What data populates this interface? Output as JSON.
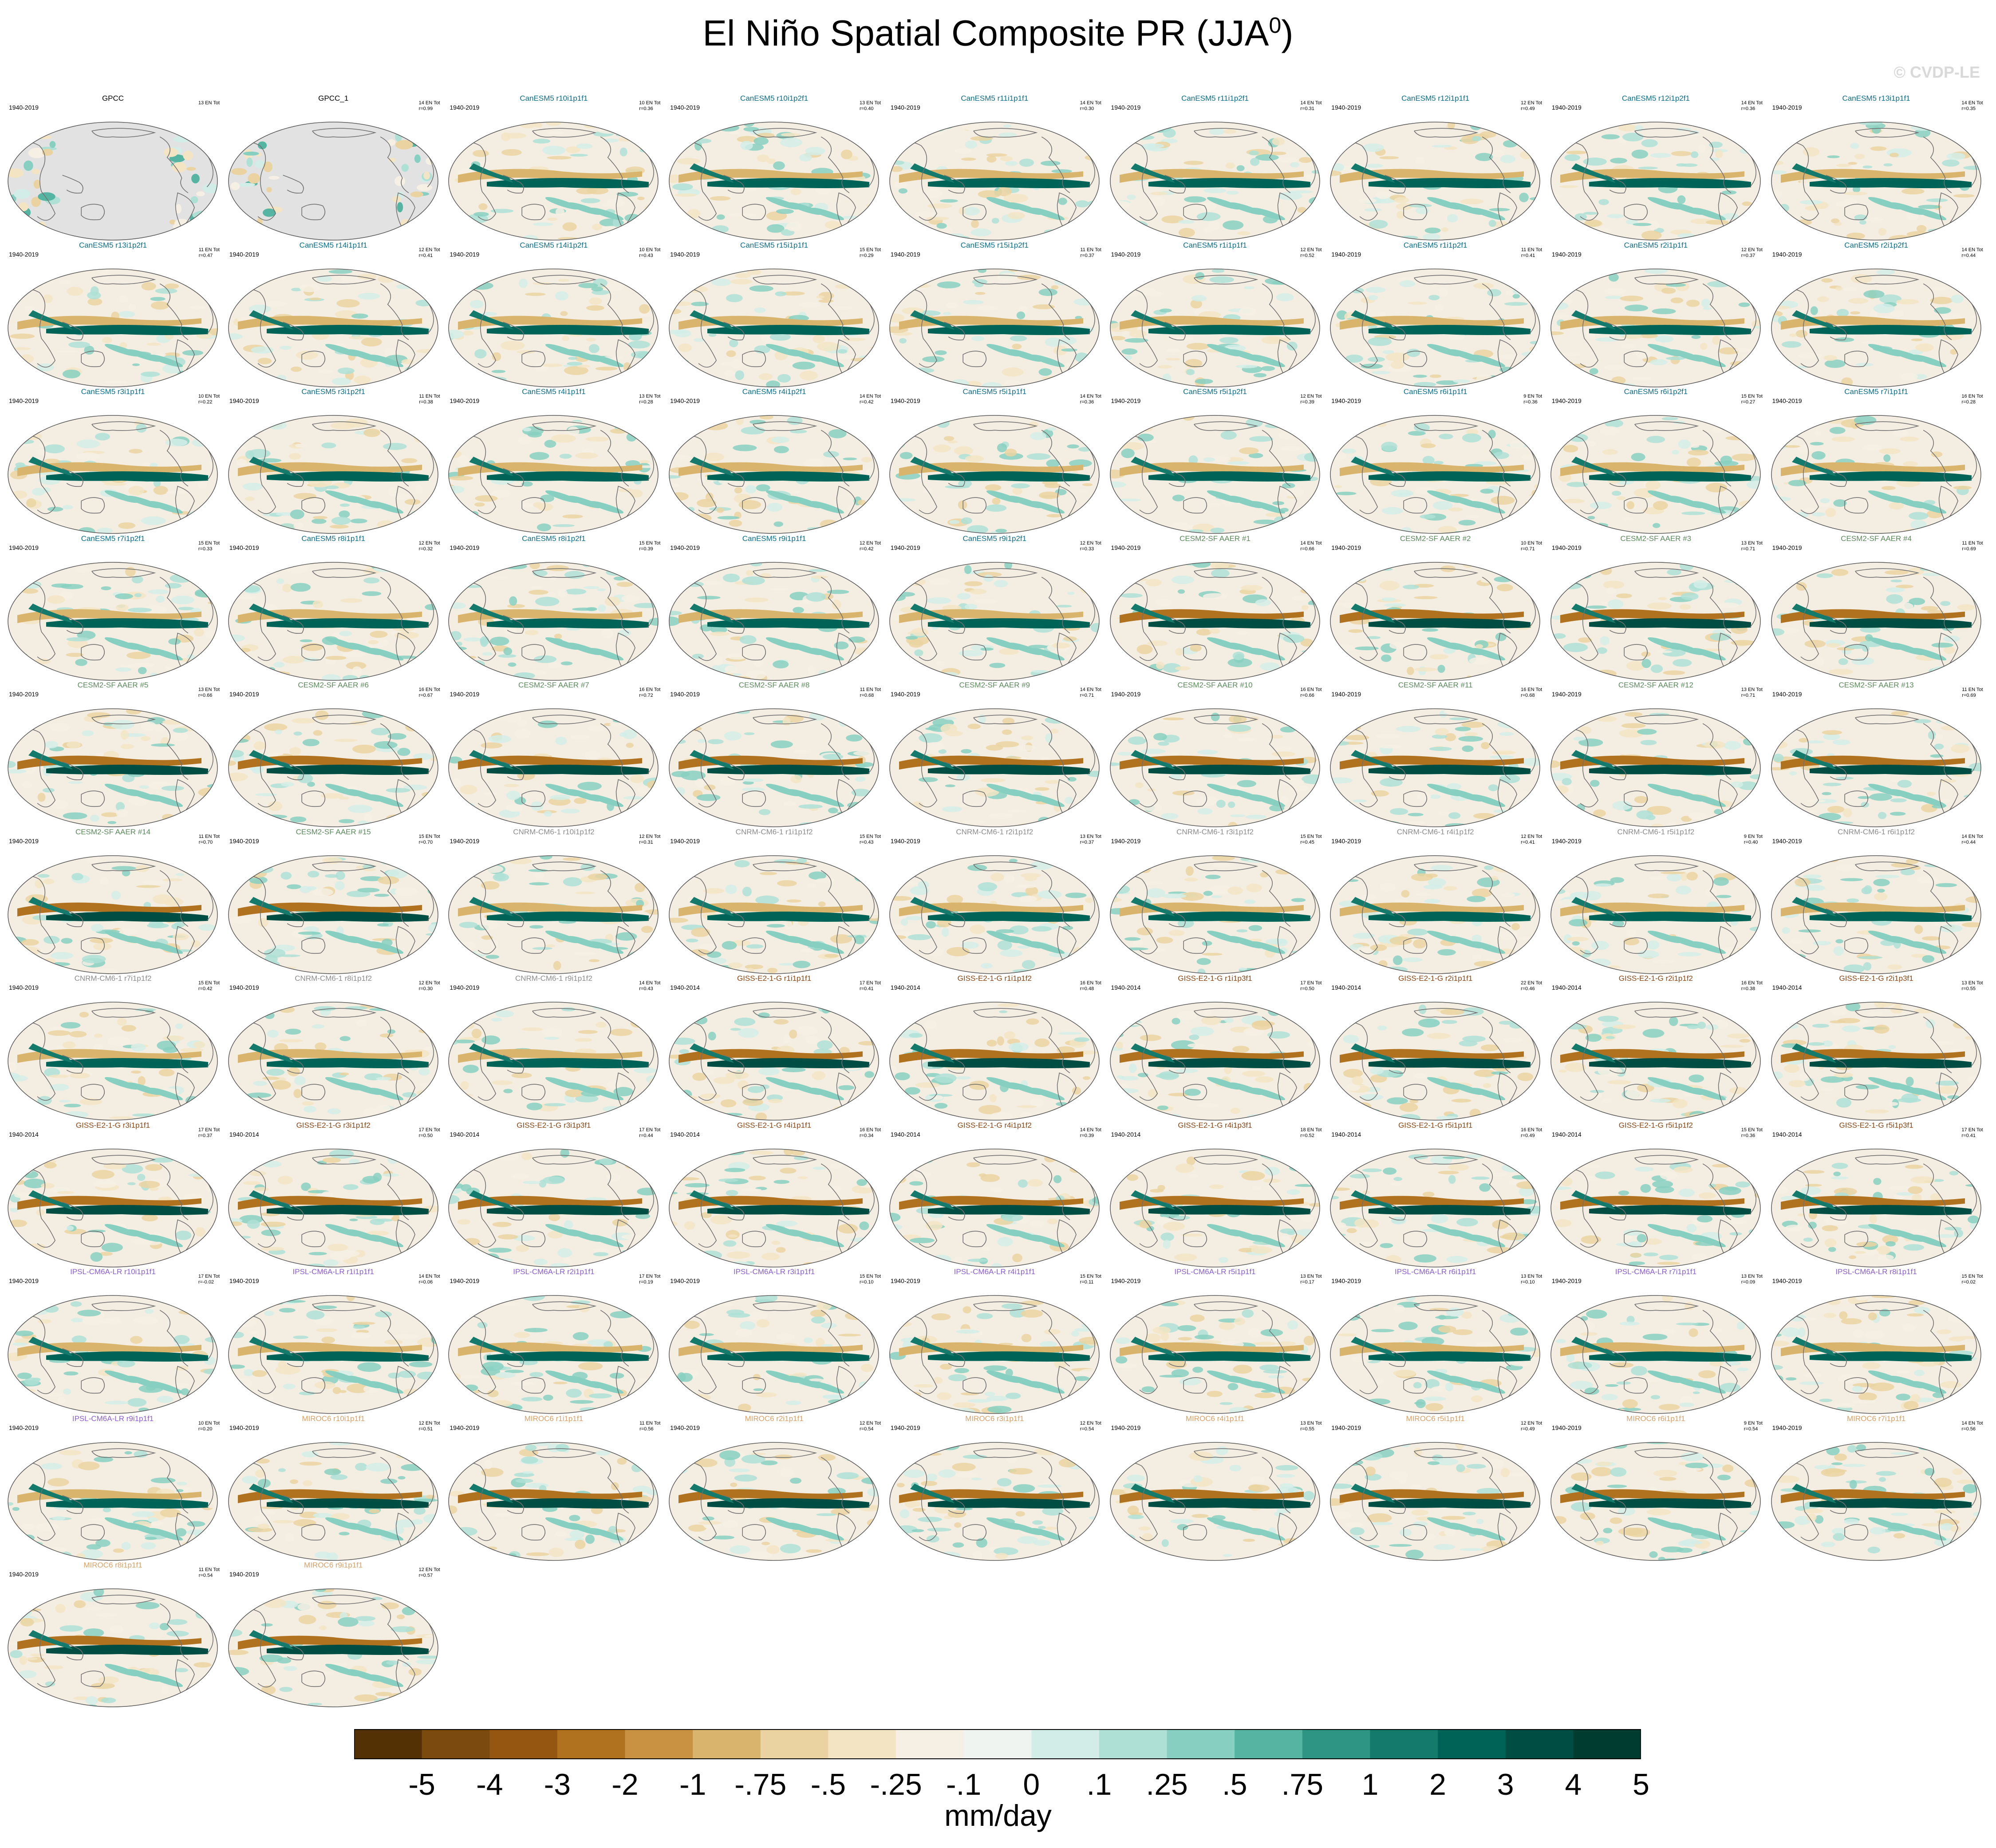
{
  "title": {
    "main": "El Niño Spatial Composite PR (JJA",
    "sup": "0",
    "close": ")"
  },
  "watermark": "© CVDP-LE",
  "units": "mm/day",
  "colors": {
    "gpcc_title": "#000000",
    "CanESM5": "#0a6e8a",
    "CESM2-SF AAER": "#5a8a5a",
    "CNRM-CM6-1": "#8c8c8c",
    "GISS-E2-1-G": "#8b4513",
    "IPSL-CM6A-LR": "#8a5cd6",
    "MIROC6": "#d9a066",
    "land_mask": "#e2e2e2",
    "coast": "#707070"
  },
  "chart_data": {
    "type": "heatmap",
    "title": "El Niño Spatial Composite PR (JJA0)",
    "colorbar": {
      "label": "mm/day",
      "tick_labels": [
        "-5",
        "-4",
        "-3",
        "-2",
        "-1",
        "-.75",
        "-.5",
        "-.25",
        "-.1",
        "0",
        ".1",
        ".25",
        ".5",
        ".75",
        "1",
        "2",
        "3",
        "4",
        "5"
      ],
      "colors": [
        "#543005",
        "#7a4a0e",
        "#955611",
        "#b0721f",
        "#c99242",
        "#d9b46c",
        "#ead3a0",
        "#f3e5c4",
        "#f6f0e4",
        "#f0f4f1",
        "#d2ede7",
        "#aee0d6",
        "#87d0c1",
        "#55b5a2",
        "#2e9585",
        "#137a6c",
        "#006358",
        "#004d43",
        "#003c30"
      ]
    },
    "panels": [
      {
        "name": "GPCC",
        "group": "obs",
        "years": "1940-2019",
        "count": "13 EN Tot",
        "r": "",
        "masked": true
      },
      {
        "name": "GPCC_1",
        "group": "obs",
        "years": "",
        "count": "14 EN Tot",
        "r": "r=0.99",
        "masked": true
      },
      {
        "name": "CanESM5 r10i1p1f1",
        "group": "CanESM5",
        "years": "1940-2019",
        "count": "10 EN Tot",
        "r": "r=0.36"
      },
      {
        "name": "CanESM5 r10i1p2f1",
        "group": "CanESM5",
        "years": "1940-2019",
        "count": "13 EN Tot",
        "r": "r=0.40"
      },
      {
        "name": "CanESM5 r11i1p1f1",
        "group": "CanESM5",
        "years": "1940-2019",
        "count": "14 EN Tot",
        "r": "r=0.30"
      },
      {
        "name": "CanESM5 r11i1p2f1",
        "group": "CanESM5",
        "years": "1940-2019",
        "count": "14 EN Tot",
        "r": "r=0.31"
      },
      {
        "name": "CanESM5 r12i1p1f1",
        "group": "CanESM5",
        "years": "1940-2019",
        "count": "12 EN Tot",
        "r": "r=0.49"
      },
      {
        "name": "CanESM5 r12i1p2f1",
        "group": "CanESM5",
        "years": "1940-2019",
        "count": "14 EN Tot",
        "r": "r=0.36"
      },
      {
        "name": "CanESM5 r13i1p1f1",
        "group": "CanESM5",
        "years": "1940-2019",
        "count": "14 EN Tot",
        "r": "r=0.35"
      },
      {
        "name": "CanESM5 r13i1p2f1",
        "group": "CanESM5",
        "years": "1940-2019",
        "count": "11 EN Tot",
        "r": "r=0.47"
      },
      {
        "name": "CanESM5 r14i1p1f1",
        "group": "CanESM5",
        "years": "1940-2019",
        "count": "12 EN Tot",
        "r": "r=0.41"
      },
      {
        "name": "CanESM5 r14i1p2f1",
        "group": "CanESM5",
        "years": "1940-2019",
        "count": "10 EN Tot",
        "r": "r=0.43"
      },
      {
        "name": "CanESM5 r15i1p1f1",
        "group": "CanESM5",
        "years": "1940-2019",
        "count": "15 EN Tot",
        "r": "r=0.29"
      },
      {
        "name": "CanESM5 r15i1p2f1",
        "group": "CanESM5",
        "years": "1940-2019",
        "count": "11 EN Tot",
        "r": "r=0.37"
      },
      {
        "name": "CanESM5 r1i1p1f1",
        "group": "CanESM5",
        "years": "1940-2019",
        "count": "12 EN Tot",
        "r": "r=0.52"
      },
      {
        "name": "CanESM5 r1i1p2f1",
        "group": "CanESM5",
        "years": "1940-2019",
        "count": "11 EN Tot",
        "r": "r=0.41"
      },
      {
        "name": "CanESM5 r2i1p1f1",
        "group": "CanESM5",
        "years": "1940-2019",
        "count": "12 EN Tot",
        "r": "r=0.37"
      },
      {
        "name": "CanESM5 r2i1p2f1",
        "group": "CanESM5",
        "years": "1940-2019",
        "count": "14 EN Tot",
        "r": "r=0.44"
      },
      {
        "name": "CanESM5 r3i1p1f1",
        "group": "CanESM5",
        "years": "1940-2019",
        "count": "10 EN Tot",
        "r": "r=0.22"
      },
      {
        "name": "CanESM5 r3i1p2f1",
        "group": "CanESM5",
        "years": "1940-2019",
        "count": "11 EN Tot",
        "r": "r=0.38"
      },
      {
        "name": "CanESM5 r4i1p1f1",
        "group": "CanESM5",
        "years": "1940-2019",
        "count": "13 EN Tot",
        "r": "r=0.28"
      },
      {
        "name": "CanESM5 r4i1p2f1",
        "group": "CanESM5",
        "years": "1940-2019",
        "count": "14 EN Tot",
        "r": "r=0.42"
      },
      {
        "name": "CanESM5 r5i1p1f1",
        "group": "CanESM5",
        "years": "1940-2019",
        "count": "14 EN Tot",
        "r": "r=0.36"
      },
      {
        "name": "CanESM5 r5i1p2f1",
        "group": "CanESM5",
        "years": "1940-2019",
        "count": "12 EN Tot",
        "r": "r=0.39"
      },
      {
        "name": "CanESM5 r6i1p1f1",
        "group": "CanESM5",
        "years": "1940-2019",
        "count": "9 EN Tot",
        "r": "r=0.36"
      },
      {
        "name": "CanESM5 r6i1p2f1",
        "group": "CanESM5",
        "years": "1940-2019",
        "count": "15 EN Tot",
        "r": "r=0.27"
      },
      {
        "name": "CanESM5 r7i1p1f1",
        "group": "CanESM5",
        "years": "1940-2019",
        "count": "16 EN Tot",
        "r": "r=0.28"
      },
      {
        "name": "CanESM5 r7i1p2f1",
        "group": "CanESM5",
        "years": "1940-2019",
        "count": "15 EN Tot",
        "r": "r=0.33"
      },
      {
        "name": "CanESM5 r8i1p1f1",
        "group": "CanESM5",
        "years": "1940-2019",
        "count": "12 EN Tot",
        "r": "r=0.32"
      },
      {
        "name": "CanESM5 r8i1p2f1",
        "group": "CanESM5",
        "years": "1940-2019",
        "count": "15 EN Tot",
        "r": "r=0.39"
      },
      {
        "name": "CanESM5 r9i1p1f1",
        "group": "CanESM5",
        "years": "1940-2019",
        "count": "12 EN Tot",
        "r": "r=0.42"
      },
      {
        "name": "CanESM5 r9i1p2f1",
        "group": "CanESM5",
        "years": "1940-2019",
        "count": "12 EN Tot",
        "r": "r=0.33"
      },
      {
        "name": "CESM2-SF AAER #1",
        "group": "CESM2-SF AAER",
        "years": "1940-2019",
        "count": "14 EN Tot",
        "r": "r=0.66"
      },
      {
        "name": "CESM2-SF AAER #2",
        "group": "CESM2-SF AAER",
        "years": "1940-2019",
        "count": "10 EN Tot",
        "r": "r=0.71"
      },
      {
        "name": "CESM2-SF AAER #3",
        "group": "CESM2-SF AAER",
        "years": "1940-2019",
        "count": "13 EN Tot",
        "r": "r=0.71"
      },
      {
        "name": "CESM2-SF AAER #4",
        "group": "CESM2-SF AAER",
        "years": "1940-2019",
        "count": "11 EN Tot",
        "r": "r=0.69"
      },
      {
        "name": "CESM2-SF AAER #5",
        "group": "CESM2-SF AAER",
        "years": "1940-2019",
        "count": "13 EN Tot",
        "r": "r=0.66"
      },
      {
        "name": "CESM2-SF AAER #6",
        "group": "CESM2-SF AAER",
        "years": "1940-2019",
        "count": "16 EN Tot",
        "r": "r=0.67"
      },
      {
        "name": "CESM2-SF AAER #7",
        "group": "CESM2-SF AAER",
        "years": "1940-2019",
        "count": "16 EN Tot",
        "r": "r=0.72"
      },
      {
        "name": "CESM2-SF AAER #8",
        "group": "CESM2-SF AAER",
        "years": "1940-2019",
        "count": "11 EN Tot",
        "r": "r=0.68"
      },
      {
        "name": "CESM2-SF AAER #9",
        "group": "CESM2-SF AAER",
        "years": "1940-2019",
        "count": "14 EN Tot",
        "r": "r=0.71"
      },
      {
        "name": "CESM2-SF AAER #10",
        "group": "CESM2-SF AAER",
        "years": "1940-2019",
        "count": "16 EN Tot",
        "r": "r=0.66"
      },
      {
        "name": "CESM2-SF AAER #11",
        "group": "CESM2-SF AAER",
        "years": "1940-2019",
        "count": "16 EN Tot",
        "r": "r=0.68"
      },
      {
        "name": "CESM2-SF AAER #12",
        "group": "CESM2-SF AAER",
        "years": "1940-2019",
        "count": "13 EN Tot",
        "r": "r=0.71"
      },
      {
        "name": "CESM2-SF AAER #13",
        "group": "CESM2-SF AAER",
        "years": "1940-2019",
        "count": "11 EN Tot",
        "r": "r=0.69"
      },
      {
        "name": "CESM2-SF AAER #14",
        "group": "CESM2-SF AAER",
        "years": "1940-2019",
        "count": "11 EN Tot",
        "r": "r=0.70"
      },
      {
        "name": "CESM2-SF AAER #15",
        "group": "CESM2-SF AAER",
        "years": "1940-2019",
        "count": "15 EN Tot",
        "r": "r=0.70"
      },
      {
        "name": "CNRM-CM6-1 r10i1p1f2",
        "group": "CNRM-CM6-1",
        "years": "1940-2019",
        "count": "12 EN Tot",
        "r": "r=0.31"
      },
      {
        "name": "CNRM-CM6-1 r1i1p1f2",
        "group": "CNRM-CM6-1",
        "years": "1940-2019",
        "count": "15 EN Tot",
        "r": "r=0.43"
      },
      {
        "name": "CNRM-CM6-1 r2i1p1f2",
        "group": "CNRM-CM6-1",
        "years": "1940-2019",
        "count": "13 EN Tot",
        "r": "r=0.37"
      },
      {
        "name": "CNRM-CM6-1 r3i1p1f2",
        "group": "CNRM-CM6-1",
        "years": "1940-2019",
        "count": "15 EN Tot",
        "r": "r=0.45"
      },
      {
        "name": "CNRM-CM6-1 r4i1p1f2",
        "group": "CNRM-CM6-1",
        "years": "1940-2019",
        "count": "12 EN Tot",
        "r": "r=0.41"
      },
      {
        "name": "CNRM-CM6-1 r5i1p1f2",
        "group": "CNRM-CM6-1",
        "years": "1940-2019",
        "count": "9 EN Tot",
        "r": "r=0.40"
      },
      {
        "name": "CNRM-CM6-1 r6i1p1f2",
        "group": "CNRM-CM6-1",
        "years": "1940-2019",
        "count": "14 EN Tot",
        "r": "r=0.44"
      },
      {
        "name": "CNRM-CM6-1 r7i1p1f2",
        "group": "CNRM-CM6-1",
        "years": "1940-2019",
        "count": "15 EN Tot",
        "r": "r=0.42"
      },
      {
        "name": "CNRM-CM6-1 r8i1p1f2",
        "group": "CNRM-CM6-1",
        "years": "1940-2019",
        "count": "12 EN Tot",
        "r": "r=0.30"
      },
      {
        "name": "CNRM-CM6-1 r9i1p1f2",
        "group": "CNRM-CM6-1",
        "years": "1940-2019",
        "count": "14 EN Tot",
        "r": "r=0.43"
      },
      {
        "name": "GISS-E2-1-G r1i1p1f1",
        "group": "GISS-E2-1-G",
        "years": "1940-2014",
        "count": "17 EN Tot",
        "r": "r=0.41"
      },
      {
        "name": "GISS-E2-1-G r1i1p1f2",
        "group": "GISS-E2-1-G",
        "years": "1940-2014",
        "count": "16 EN Tot",
        "r": "r=0.48"
      },
      {
        "name": "GISS-E2-1-G r1i1p3f1",
        "group": "GISS-E2-1-G",
        "years": "1940-2014",
        "count": "17 EN Tot",
        "r": "r=0.50"
      },
      {
        "name": "GISS-E2-1-G r2i1p1f1",
        "group": "GISS-E2-1-G",
        "years": "1940-2014",
        "count": "22 EN Tot",
        "r": "r=0.46"
      },
      {
        "name": "GISS-E2-1-G r2i1p1f2",
        "group": "GISS-E2-1-G",
        "years": "1940-2014",
        "count": "16 EN Tot",
        "r": "r=0.38"
      },
      {
        "name": "GISS-E2-1-G r2i1p3f1",
        "group": "GISS-E2-1-G",
        "years": "1940-2014",
        "count": "13 EN Tot",
        "r": "r=0.55"
      },
      {
        "name": "GISS-E2-1-G r3i1p1f1",
        "group": "GISS-E2-1-G",
        "years": "1940-2014",
        "count": "17 EN Tot",
        "r": "r=0.37"
      },
      {
        "name": "GISS-E2-1-G r3i1p1f2",
        "group": "GISS-E2-1-G",
        "years": "1940-2014",
        "count": "17 EN Tot",
        "r": "r=0.50"
      },
      {
        "name": "GISS-E2-1-G r3i1p3f1",
        "group": "GISS-E2-1-G",
        "years": "1940-2014",
        "count": "17 EN Tot",
        "r": "r=0.44"
      },
      {
        "name": "GISS-E2-1-G r4i1p1f1",
        "group": "GISS-E2-1-G",
        "years": "1940-2014",
        "count": "16 EN Tot",
        "r": "r=0.34"
      },
      {
        "name": "GISS-E2-1-G r4i1p1f2",
        "group": "GISS-E2-1-G",
        "years": "1940-2014",
        "count": "14 EN Tot",
        "r": "r=0.39"
      },
      {
        "name": "GISS-E2-1-G r4i1p3f1",
        "group": "GISS-E2-1-G",
        "years": "1940-2014",
        "count": "18 EN Tot",
        "r": "r=0.52"
      },
      {
        "name": "GISS-E2-1-G r5i1p1f1",
        "group": "GISS-E2-1-G",
        "years": "1940-2014",
        "count": "16 EN Tot",
        "r": "r=0.49"
      },
      {
        "name": "GISS-E2-1-G r5i1p1f2",
        "group": "GISS-E2-1-G",
        "years": "1940-2014",
        "count": "15 EN Tot",
        "r": "r=0.36"
      },
      {
        "name": "GISS-E2-1-G r5i1p3f1",
        "group": "GISS-E2-1-G",
        "years": "1940-2014",
        "count": "17 EN Tot",
        "r": "r=0.41"
      },
      {
        "name": "IPSL-CM6A-LR r10i1p1f1",
        "group": "IPSL-CM6A-LR",
        "years": "1940-2019",
        "count": "17 EN Tot",
        "r": "r=-0.02"
      },
      {
        "name": "IPSL-CM6A-LR r1i1p1f1",
        "group": "IPSL-CM6A-LR",
        "years": "1940-2019",
        "count": "14 EN Tot",
        "r": "r=0.06"
      },
      {
        "name": "IPSL-CM6A-LR r2i1p1f1",
        "group": "IPSL-CM6A-LR",
        "years": "1940-2019",
        "count": "17 EN Tot",
        "r": "r=0.19"
      },
      {
        "name": "IPSL-CM6A-LR r3i1p1f1",
        "group": "IPSL-CM6A-LR",
        "years": "1940-2019",
        "count": "15 EN Tot",
        "r": "r=0.10"
      },
      {
        "name": "IPSL-CM6A-LR r4i1p1f1",
        "group": "IPSL-CM6A-LR",
        "years": "1940-2019",
        "count": "15 EN Tot",
        "r": "r=0.11"
      },
      {
        "name": "IPSL-CM6A-LR r5i1p1f1",
        "group": "IPSL-CM6A-LR",
        "years": "1940-2019",
        "count": "13 EN Tot",
        "r": "r=0.17"
      },
      {
        "name": "IPSL-CM6A-LR r6i1p1f1",
        "group": "IPSL-CM6A-LR",
        "years": "1940-2019",
        "count": "13 EN Tot",
        "r": "r=0.10"
      },
      {
        "name": "IPSL-CM6A-LR r7i1p1f1",
        "group": "IPSL-CM6A-LR",
        "years": "1940-2019",
        "count": "13 EN Tot",
        "r": "r=0.09"
      },
      {
        "name": "IPSL-CM6A-LR r8i1p1f1",
        "group": "IPSL-CM6A-LR",
        "years": "1940-2019",
        "count": "15 EN Tot",
        "r": "r=0.02"
      },
      {
        "name": "IPSL-CM6A-LR r9i1p1f1",
        "group": "IPSL-CM6A-LR",
        "years": "1940-2019",
        "count": "10 EN Tot",
        "r": "r=0.20"
      },
      {
        "name": "MIROC6 r10i1p1f1",
        "group": "MIROC6",
        "years": "1940-2019",
        "count": "12 EN Tot",
        "r": "r=0.51"
      },
      {
        "name": "MIROC6 r1i1p1f1",
        "group": "MIROC6",
        "years": "1940-2019",
        "count": "11 EN Tot",
        "r": "r=0.56"
      },
      {
        "name": "MIROC6 r2i1p1f1",
        "group": "MIROC6",
        "years": "1940-2019",
        "count": "12 EN Tot",
        "r": "r=0.54"
      },
      {
        "name": "MIROC6 r3i1p1f1",
        "group": "MIROC6",
        "years": "1940-2019",
        "count": "12 EN Tot",
        "r": "r=0.54"
      },
      {
        "name": "MIROC6 r4i1p1f1",
        "group": "MIROC6",
        "years": "1940-2019",
        "count": "13 EN Tot",
        "r": "r=0.55"
      },
      {
        "name": "MIROC6 r5i1p1f1",
        "group": "MIROC6",
        "years": "1940-2019",
        "count": "12 EN Tot",
        "r": "r=0.49"
      },
      {
        "name": "MIROC6 r6i1p1f1",
        "group": "MIROC6",
        "years": "1940-2019",
        "count": "9 EN Tot",
        "r": "r=0.54"
      },
      {
        "name": "MIROC6 r7i1p1f1",
        "group": "MIROC6",
        "years": "1940-2019",
        "count": "14 EN Tot",
        "r": "r=0.56"
      },
      {
        "name": "MIROC6 r8i1p1f1",
        "group": "MIROC6",
        "years": "1940-2019",
        "count": "11 EN Tot",
        "r": "r=0.54"
      },
      {
        "name": "MIROC6 r9i1p1f1",
        "group": "MIROC6",
        "years": "1940-2019",
        "count": "12 EN Tot",
        "r": "r=0.57"
      }
    ]
  }
}
